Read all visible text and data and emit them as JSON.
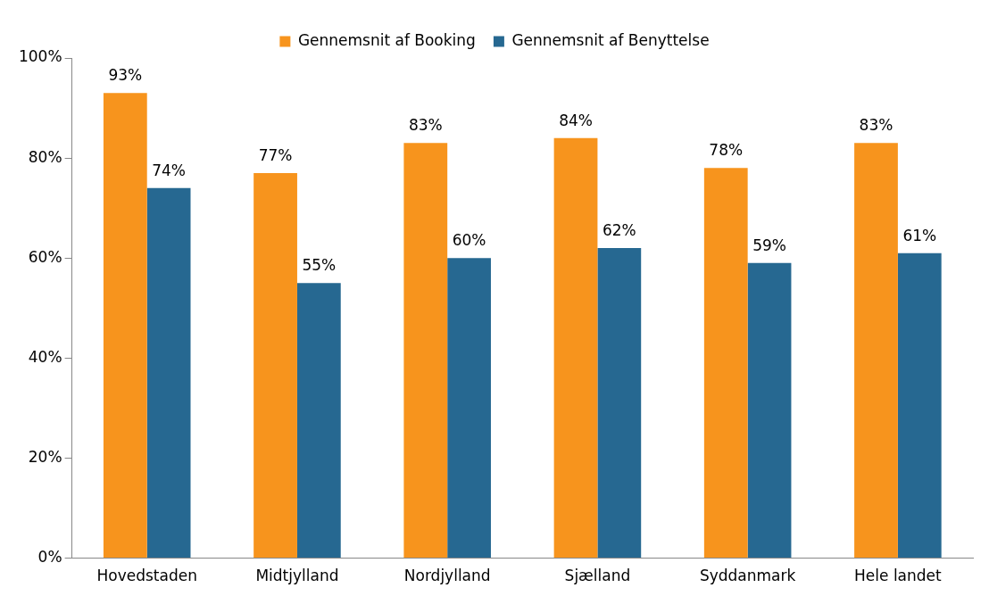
{
  "chart_data": {
    "type": "bar",
    "categories": [
      "Hovedstaden",
      "Midtjylland",
      "Nordjylland",
      "Sjælland",
      "Syddanmark",
      "Hele landet"
    ],
    "series": [
      {
        "name": "Gennemsnit af Booking",
        "color": "#f7941d",
        "values": [
          93,
          77,
          83,
          84,
          78,
          83
        ],
        "value_labels": [
          "93%",
          "77%",
          "83%",
          "84%",
          "78%",
          "83%"
        ]
      },
      {
        "name": "Gennemsnit af Benyttelse",
        "color": "#266891",
        "values": [
          74,
          55,
          60,
          62,
          59,
          61
        ],
        "value_labels": [
          "74%",
          "55%",
          "60%",
          "62%",
          "59%",
          "61%"
        ]
      }
    ],
    "ylim": [
      0,
      100
    ],
    "yticks": [
      {
        "value": 0,
        "label": "0%"
      },
      {
        "value": 20,
        "label": "20%"
      },
      {
        "value": 40,
        "label": "40%"
      },
      {
        "value": 60,
        "label": "60%"
      },
      {
        "value": 80,
        "label": "80%"
      },
      {
        "value": 100,
        "label": "100%"
      }
    ],
    "grid": false,
    "legend": "top"
  }
}
